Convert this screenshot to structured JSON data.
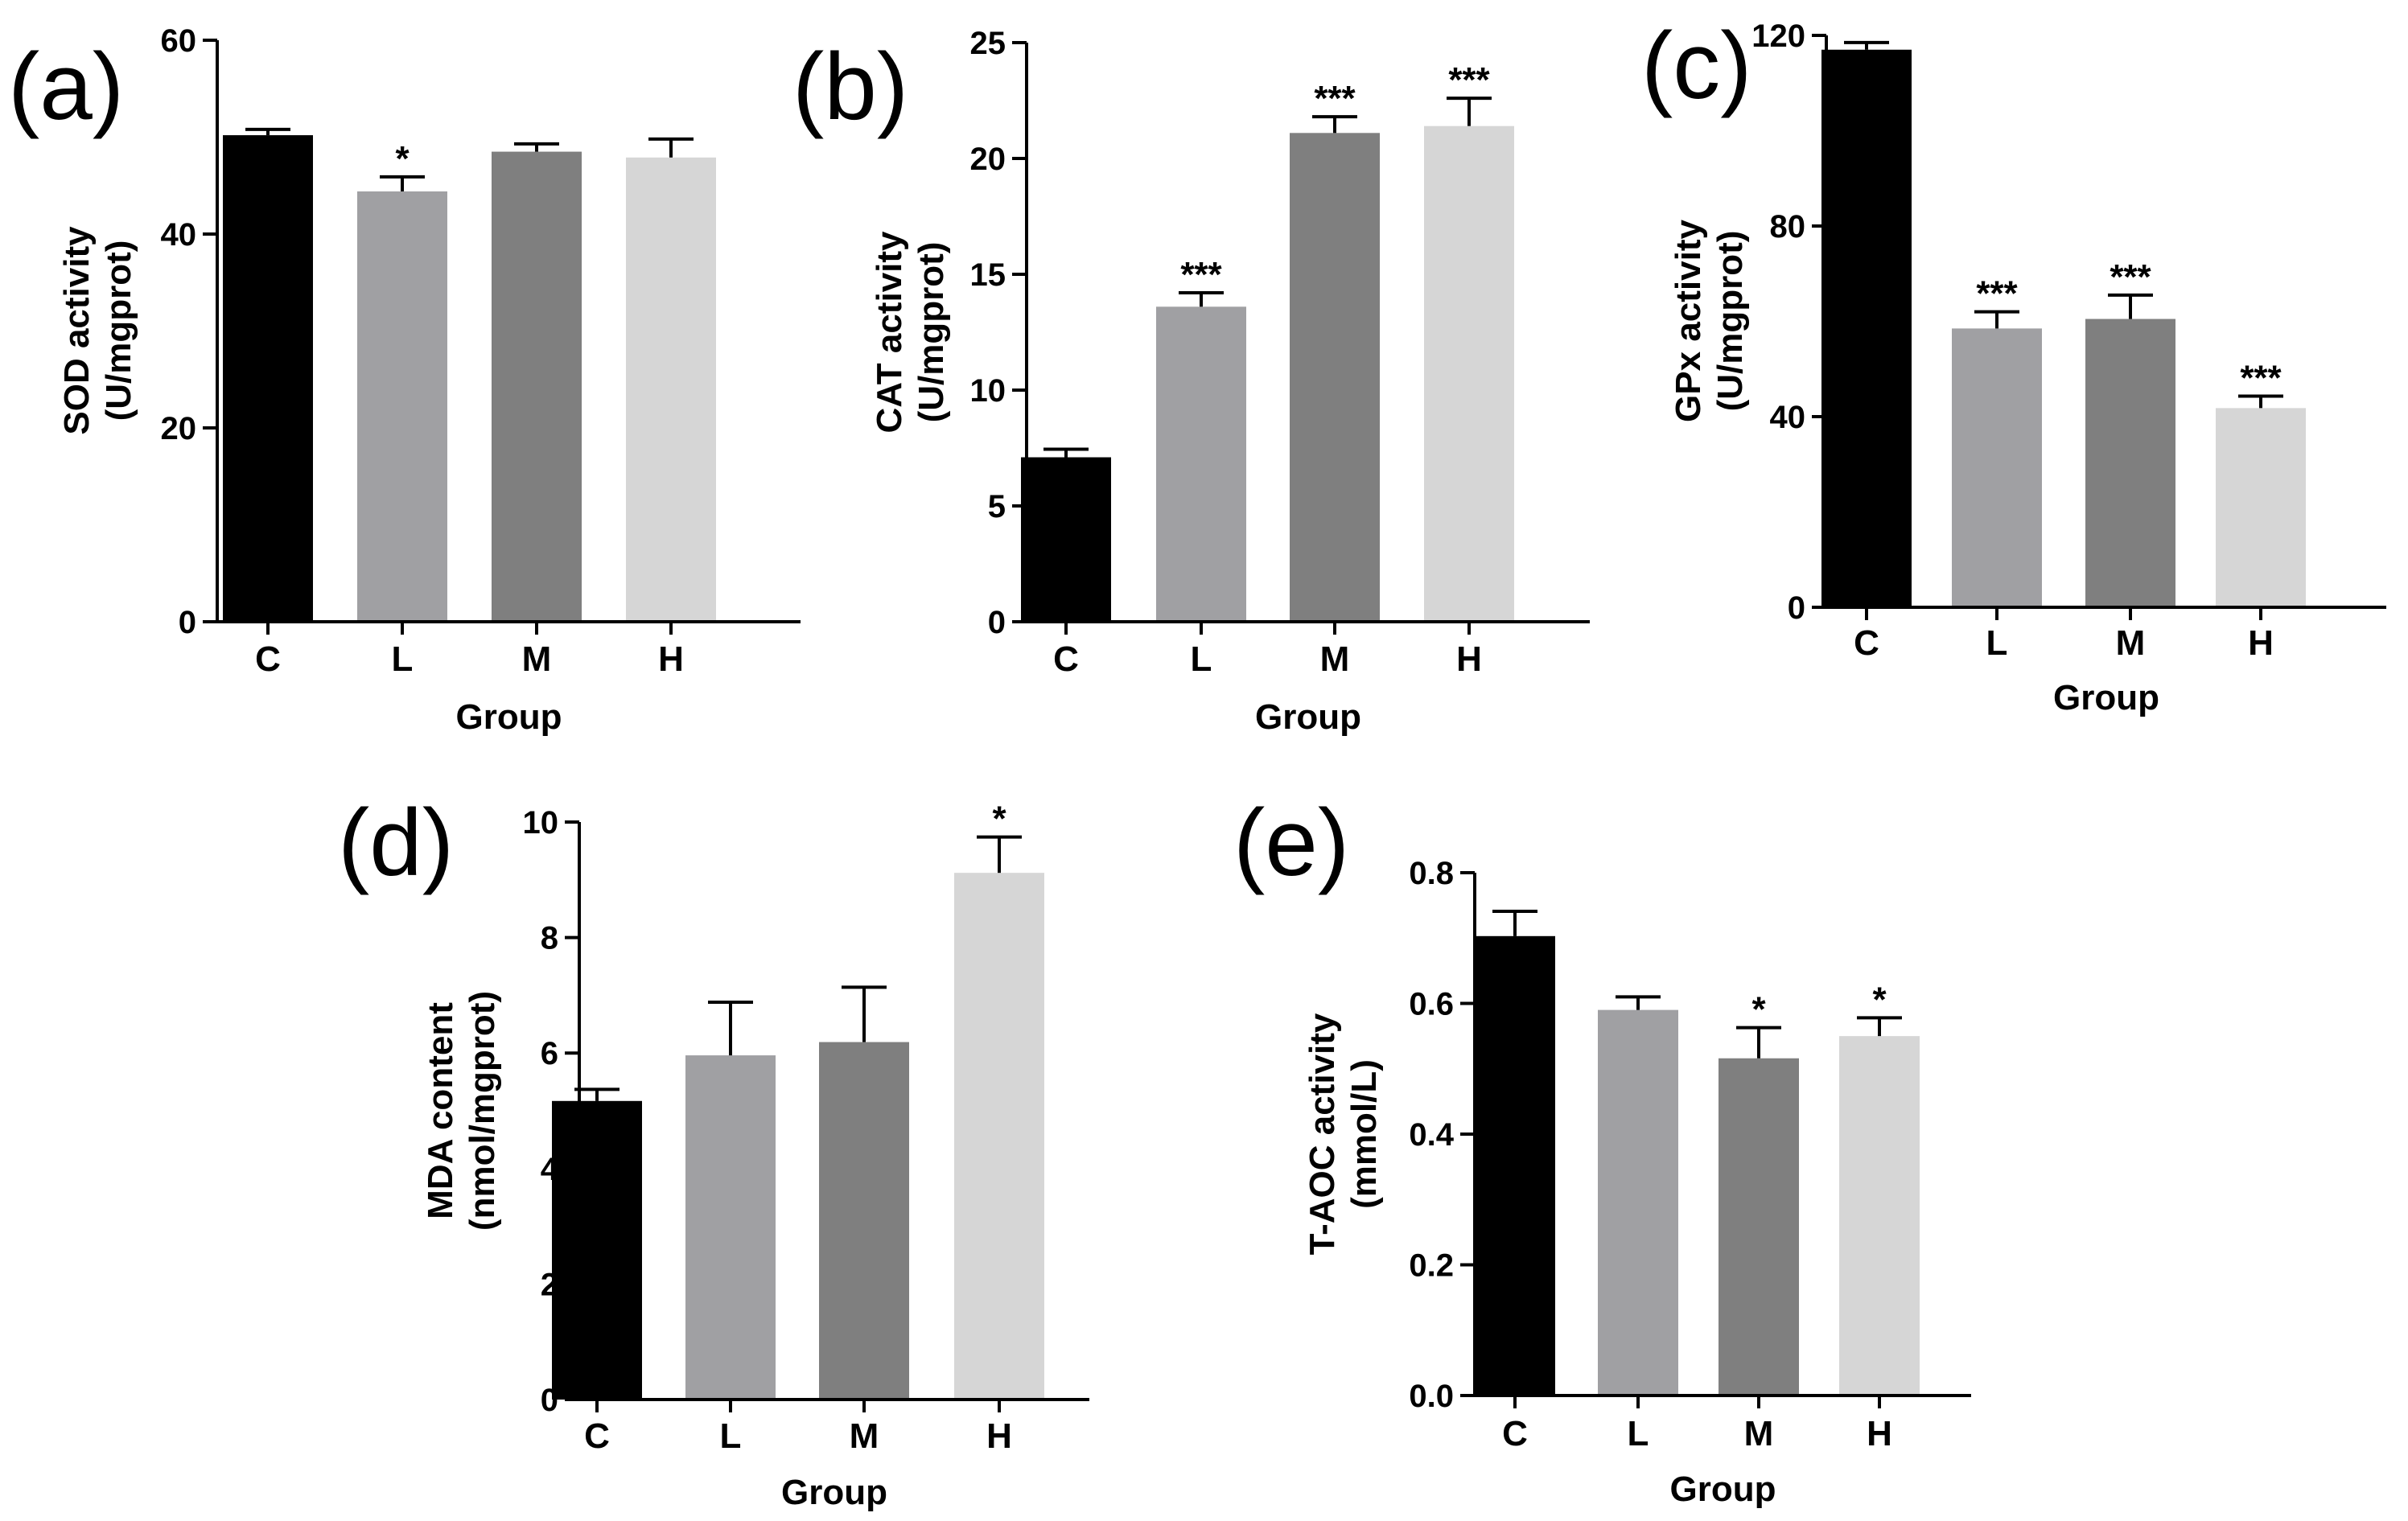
{
  "chart_data": [
    {
      "type": "bar",
      "panel_label": "(a)",
      "categories": [
        "C",
        "L",
        "M",
        "H"
      ],
      "values": [
        50.2,
        44.4,
        48.5,
        47.9
      ],
      "errors": [
        0.6,
        1.5,
        0.8,
        1.9
      ],
      "significance": [
        "",
        "*",
        "",
        ""
      ],
      "bar_colors": [
        "#000000",
        "#a0a0a3",
        "#7f7f7f",
        "#d6d6d6"
      ],
      "xlabel": "Group",
      "ylabel": "SOD activity",
      "ylabel_unit": "(U/mgprot)",
      "ylim": [
        0,
        60
      ],
      "yticks": [
        0,
        20,
        40,
        60
      ],
      "ytick_labels": [
        "0",
        "20",
        "40",
        "60"
      ],
      "grid": false
    },
    {
      "type": "bar",
      "panel_label": "(b)",
      "categories": [
        "C",
        "L",
        "M",
        "H"
      ],
      "values": [
        7.1,
        13.6,
        21.1,
        21.4
      ],
      "errors": [
        0.35,
        0.6,
        0.7,
        1.2
      ],
      "significance": [
        "",
        "***",
        "***",
        "***"
      ],
      "bar_colors": [
        "#000000",
        "#a0a0a3",
        "#7f7f7f",
        "#d6d6d6"
      ],
      "xlabel": "Group",
      "ylabel": "CAT activity",
      "ylabel_unit": "(U/mgprot)",
      "ylim": [
        0,
        25
      ],
      "yticks": [
        0,
        5,
        10,
        15,
        20,
        25
      ],
      "ytick_labels": [
        "0",
        "5",
        "10",
        "15",
        "20",
        "25"
      ],
      "grid": false
    },
    {
      "type": "bar",
      "panel_label": "(c)",
      "categories": [
        "C",
        "L",
        "M",
        "H"
      ],
      "values": [
        117,
        58.5,
        60.5,
        41.8
      ],
      "errors": [
        1.5,
        3.5,
        5.0,
        2.5
      ],
      "significance": [
        "",
        "***",
        "***",
        "***"
      ],
      "bar_colors": [
        "#000000",
        "#a0a0a3",
        "#7f7f7f",
        "#d6d6d6"
      ],
      "xlabel": "Group",
      "ylabel": "GPx activity",
      "ylabel_unit": "(U/mgprot)",
      "ylim": [
        0,
        120
      ],
      "yticks": [
        0,
        40,
        80,
        120
      ],
      "ytick_labels": [
        "0",
        "40",
        "80",
        "120"
      ],
      "grid": false
    },
    {
      "type": "bar",
      "panel_label": "(d)",
      "categories": [
        "C",
        "L",
        "M",
        "H"
      ],
      "values": [
        5.17,
        5.96,
        6.19,
        9.12
      ],
      "errors": [
        0.2,
        0.92,
        0.95,
        0.62
      ],
      "significance": [
        "",
        "",
        "",
        "*"
      ],
      "bar_colors": [
        "#000000",
        "#a0a0a3",
        "#7f7f7f",
        "#d6d6d6"
      ],
      "xlabel": "Group",
      "ylabel": "MDA content",
      "ylabel_unit": "(nmol/mgprot)",
      "ylim": [
        0,
        10
      ],
      "yticks": [
        0,
        2,
        4,
        6,
        8,
        10
      ],
      "ytick_labels": [
        "0",
        "2",
        "4",
        "6",
        "8",
        "10"
      ],
      "grid": false
    },
    {
      "type": "bar",
      "panel_label": "(e)",
      "categories": [
        "C",
        "L",
        "M",
        "H"
      ],
      "values": [
        0.703,
        0.59,
        0.516,
        0.55
      ],
      "errors": [
        0.038,
        0.02,
        0.047,
        0.028
      ],
      "significance": [
        "",
        "",
        "*",
        "*"
      ],
      "bar_colors": [
        "#000000",
        "#a0a0a3",
        "#7f7f7f",
        "#d6d6d6"
      ],
      "xlabel": "Group",
      "ylabel": "T-AOC activity",
      "ylabel_unit": "(mmol/L)",
      "ylim": [
        0,
        0.8
      ],
      "yticks": [
        0,
        0.2,
        0.4,
        0.6,
        0.8
      ],
      "ytick_labels": [
        "0.0",
        "0.2",
        "0.4",
        "0.6",
        "0.8"
      ],
      "grid": false
    }
  ]
}
